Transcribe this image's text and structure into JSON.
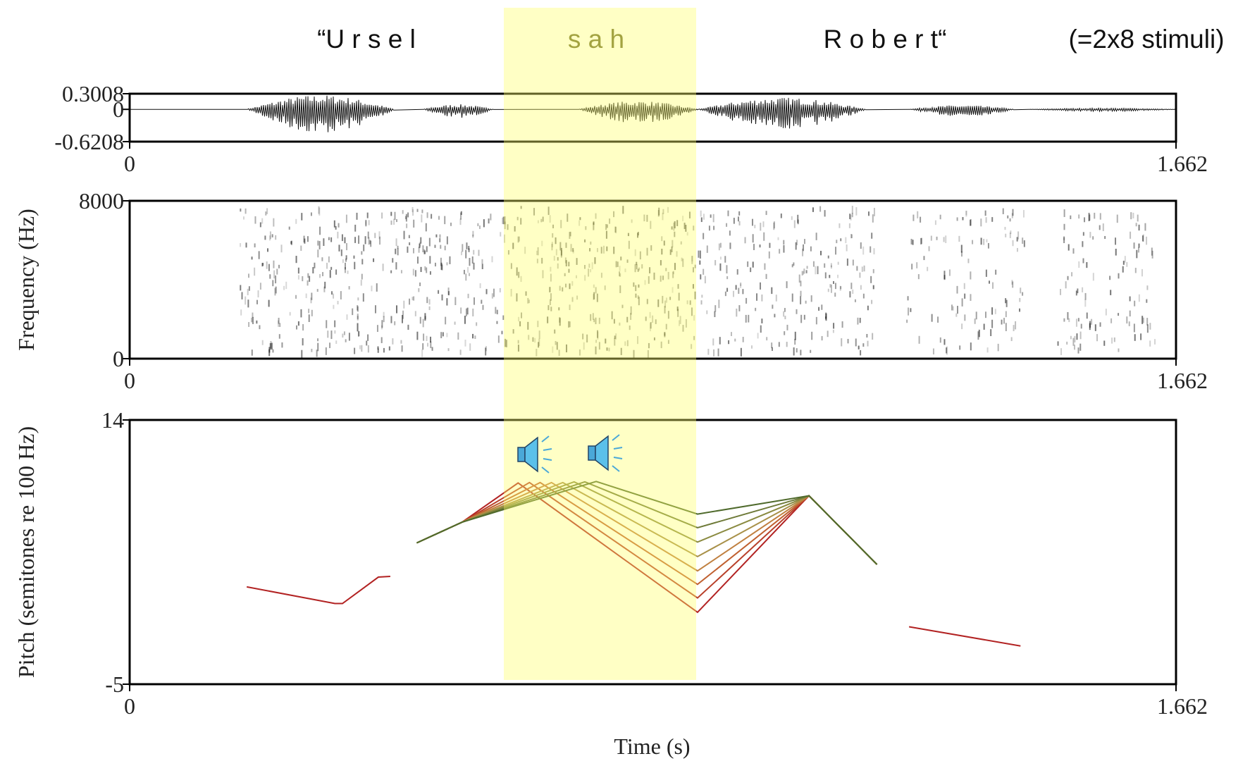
{
  "header": {
    "words": [
      "“U r s e l",
      "s a h",
      "R o b e r t“"
    ],
    "note": "(=2x8 stimuli)"
  },
  "chart_data": [
    {
      "type": "waveform",
      "xlim": [
        0,
        1.662
      ],
      "xticks": [
        0,
        1.662
      ],
      "ylim": [
        -0.6208,
        0.3008
      ],
      "yticks": [
        -0.6208,
        0,
        0.3008
      ]
    },
    {
      "type": "spectrogram",
      "ylabel": "Frequency (Hz)",
      "xlim": [
        0,
        1.662
      ],
      "xticks": [
        0,
        1.662
      ],
      "ylim": [
        0,
        8000
      ],
      "yticks": [
        0,
        8000
      ]
    },
    {
      "type": "line",
      "ylabel": "Pitch (semitones re 100 Hz)",
      "xlabel": "Time (s)",
      "xlim": [
        0,
        1.662
      ],
      "xticks": [
        0,
        1.662
      ],
      "ylim": [
        -5,
        14
      ],
      "yticks": [
        -5,
        14
      ],
      "series": [
        {
          "color": "#b22222",
          "x": [
            0.186,
            0.326,
            0.338,
            0.395,
            0.414
          ],
          "values": [
            2.0,
            0.8,
            0.8,
            2.7,
            2.75
          ]
        },
        {
          "color": "#b22222",
          "x": [
            1.238,
            1.415
          ],
          "values": [
            -0.87,
            -2.25
          ]
        },
        {
          "color": "#b22222",
          "x": [
            0.456,
            0.528,
            0.617,
            0.902,
            1.079,
            1.187
          ],
          "values": [
            5.16,
            6.65,
            9.47,
            0.17,
            8.55,
            3.61
          ]
        },
        {
          "color": "#b8402a",
          "x": [
            0.456,
            0.528,
            0.635,
            0.902,
            1.079,
            1.187
          ],
          "values": [
            5.16,
            6.65,
            9.5,
            1.2,
            8.55,
            3.61
          ]
        },
        {
          "color": "#c06030",
          "x": [
            0.456,
            0.528,
            0.652,
            0.902,
            1.079,
            1.187
          ],
          "values": [
            5.16,
            6.65,
            9.5,
            2.18,
            8.55,
            3.61
          ]
        },
        {
          "color": "#c08040",
          "x": [
            0.456,
            0.528,
            0.67,
            0.902,
            1.079,
            1.187
          ],
          "values": [
            5.16,
            6.65,
            9.5,
            3.15,
            8.55,
            3.61
          ]
        },
        {
          "color": "#a89048",
          "x": [
            0.456,
            0.528,
            0.688,
            0.902,
            1.079,
            1.187
          ],
          "values": [
            5.16,
            6.65,
            9.5,
            4.18,
            8.55,
            3.61
          ]
        },
        {
          "color": "#8a8a40",
          "x": [
            0.456,
            0.528,
            0.706,
            0.902,
            1.079,
            1.187
          ],
          "values": [
            5.16,
            6.65,
            9.55,
            5.22,
            8.55,
            3.61
          ]
        },
        {
          "color": "#6e7a38",
          "x": [
            0.456,
            0.528,
            0.723,
            0.902,
            1.079,
            1.187
          ],
          "values": [
            5.16,
            6.65,
            9.55,
            6.25,
            8.55,
            3.61
          ]
        },
        {
          "color": "#4f6a2c",
          "x": [
            0.456,
            0.528,
            0.741,
            0.902,
            1.079,
            1.187
          ],
          "values": [
            5.16,
            6.65,
            9.58,
            7.23,
            8.55,
            3.61
          ]
        }
      ]
    }
  ]
}
